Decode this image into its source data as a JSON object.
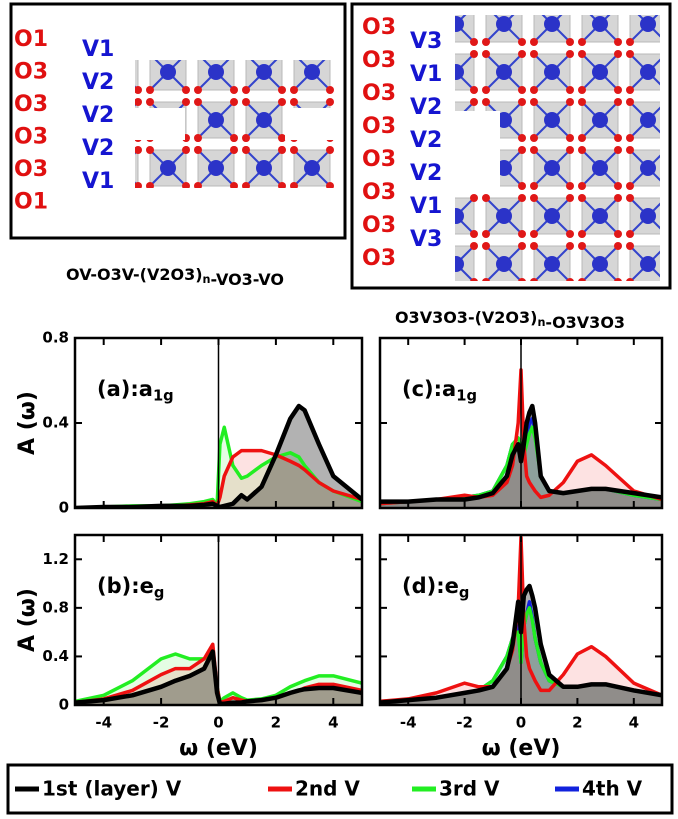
{
  "structures": [
    {
      "o_labels": [
        "O1",
        "O3",
        "O3",
        "O3",
        "O3",
        "O1"
      ],
      "v_labels": [
        "V1",
        "V2",
        "V2",
        "V2",
        "V1"
      ],
      "caption": {
        "before": "OV-O3V-(V2O3)",
        "sub": "n",
        "after": "-VO3-VO"
      }
    },
    {
      "o_labels": [
        "O3",
        "O3",
        "O3",
        "O3",
        "O3",
        "O3",
        "O3",
        "O3"
      ],
      "v_labels": [
        "V3",
        "V1",
        "V2",
        "V2",
        "V2",
        "V1",
        "V3"
      ],
      "caption": {
        "before": "O3V3O3-(V2O3)",
        "sub": "n",
        "after": "-O3V3O3"
      }
    }
  ],
  "chart_data": [
    {
      "type": "line",
      "label": {
        "text": "(a):a",
        "sub": "1g"
      },
      "ylabel": "A (ω)",
      "show_ytick_labels": true,
      "show_xtick_labels": false,
      "fill": true,
      "vline": 0,
      "xlim": [
        -5,
        5
      ],
      "xticks": [
        -4,
        -2,
        0,
        2,
        4
      ],
      "ylim": [
        0,
        0.8
      ],
      "yticks": [
        0,
        0.4,
        0.8
      ],
      "x": [
        -5,
        -4,
        -3,
        -2,
        -1.5,
        -1,
        -0.5,
        -0.2,
        -0.05,
        0.05,
        0.2,
        0.5,
        0.8,
        1,
        1.5,
        2,
        2.5,
        2.8,
        3,
        3.5,
        4,
        5
      ],
      "series": [
        {
          "name": "1st (layer) V",
          "color": "#000000",
          "values": [
            0,
            0.005,
            0.005,
            0.01,
            0.01,
            0.01,
            0.015,
            0.02,
            0.01,
            0.005,
            0.01,
            0.02,
            0.06,
            0.04,
            0.1,
            0.25,
            0.42,
            0.48,
            0.46,
            0.3,
            0.15,
            0.04
          ]
        },
        {
          "name": "2nd V",
          "color": "#ee1111",
          "values": [
            0,
            0.005,
            0.005,
            0.01,
            0.01,
            0.015,
            0.02,
            0.03,
            0.01,
            0.05,
            0.15,
            0.24,
            0.27,
            0.27,
            0.27,
            0.25,
            0.22,
            0.2,
            0.18,
            0.12,
            0.08,
            0.04
          ]
        },
        {
          "name": "3rd V",
          "color": "#22ee22",
          "values": [
            0,
            0.005,
            0.01,
            0.01,
            0.015,
            0.02,
            0.03,
            0.04,
            0.01,
            0.3,
            0.38,
            0.2,
            0.14,
            0.15,
            0.2,
            0.24,
            0.26,
            0.24,
            0.2,
            0.12,
            0.08,
            0.03
          ]
        }
      ]
    },
    {
      "type": "line",
      "label": {
        "text": "(c):a",
        "sub": "1g"
      },
      "show_ytick_labels": false,
      "show_xtick_labels": false,
      "fill": true,
      "vline": 0,
      "xlim": [
        -5,
        5
      ],
      "xticks": [
        -4,
        -2,
        0,
        2,
        4
      ],
      "ylim": [
        0,
        0.8
      ],
      "yticks": [
        0,
        0.4,
        0.8
      ],
      "x": [
        -5,
        -4,
        -3,
        -2,
        -1.5,
        -1,
        -0.5,
        -0.3,
        -0.1,
        0,
        0.1,
        0.2,
        0.3,
        0.4,
        0.5,
        0.7,
        1,
        1.5,
        2,
        2.5,
        3,
        4,
        5
      ],
      "series": [
        {
          "name": "1st (layer) V",
          "color": "#000000",
          "values": [
            0.03,
            0.03,
            0.04,
            0.04,
            0.05,
            0.07,
            0.15,
            0.25,
            0.3,
            0.22,
            0.3,
            0.4,
            0.45,
            0.48,
            0.4,
            0.15,
            0.08,
            0.07,
            0.08,
            0.09,
            0.09,
            0.07,
            0.05
          ]
        },
        {
          "name": "2nd V",
          "color": "#ee1111",
          "values": [
            0.02,
            0.03,
            0.04,
            0.06,
            0.05,
            0.06,
            0.12,
            0.2,
            0.4,
            0.65,
            0.3,
            0.15,
            0.12,
            0.1,
            0.08,
            0.05,
            0.06,
            0.12,
            0.22,
            0.25,
            0.2,
            0.08,
            0.04
          ]
        },
        {
          "name": "3rd V",
          "color": "#22ee22",
          "values": [
            0.02,
            0.03,
            0.04,
            0.05,
            0.06,
            0.08,
            0.2,
            0.3,
            0.33,
            0.3,
            0.25,
            0.3,
            0.35,
            0.38,
            0.33,
            0.15,
            0.08,
            0.07,
            0.08,
            0.09,
            0.09,
            0.06,
            0.04
          ]
        },
        {
          "name": "4th V",
          "color": "#1122dd",
          "values": [
            0.02,
            0.03,
            0.04,
            0.05,
            0.06,
            0.08,
            0.2,
            0.3,
            0.3,
            0.28,
            0.25,
            0.32,
            0.4,
            0.42,
            0.35,
            0.15,
            0.08,
            0.07,
            0.08,
            0.09,
            0.09,
            0.06,
            0.04
          ]
        }
      ]
    },
    {
      "type": "line",
      "label": {
        "text": "(b):e",
        "sub": "g"
      },
      "ylabel": "A (ω)",
      "xlabel": "ω (eV)",
      "show_ytick_labels": true,
      "show_xtick_labels": true,
      "fill": true,
      "vline": 0,
      "xlim": [
        -5,
        5
      ],
      "xticks": [
        -4,
        -2,
        0,
        2,
        4
      ],
      "ylim": [
        0,
        1.4
      ],
      "yticks": [
        0,
        0.4,
        0.8,
        1.2
      ],
      "x": [
        -5,
        -4,
        -3,
        -2,
        -1.5,
        -1,
        -0.5,
        -0.2,
        -0.05,
        0.05,
        0.2,
        0.5,
        0.8,
        1,
        1.5,
        2,
        2.5,
        2.8,
        3,
        3.5,
        4,
        5
      ],
      "series": [
        {
          "name": "1st (layer) V",
          "color": "#000000",
          "values": [
            0.02,
            0.04,
            0.08,
            0.15,
            0.2,
            0.24,
            0.3,
            0.44,
            0.1,
            0.01,
            0.01,
            0.02,
            0.02,
            0.03,
            0.04,
            0.06,
            0.1,
            0.12,
            0.13,
            0.14,
            0.14,
            0.1
          ]
        },
        {
          "name": "2nd V",
          "color": "#ee1111",
          "values": [
            0.02,
            0.05,
            0.12,
            0.25,
            0.3,
            0.3,
            0.38,
            0.5,
            0.15,
            0.02,
            0.03,
            0.06,
            0.04,
            0.03,
            0.04,
            0.06,
            0.1,
            0.12,
            0.14,
            0.17,
            0.17,
            0.12
          ]
        },
        {
          "name": "3rd V",
          "color": "#22ee22",
          "values": [
            0.03,
            0.08,
            0.2,
            0.38,
            0.42,
            0.38,
            0.38,
            0.45,
            0.15,
            0.03,
            0.06,
            0.1,
            0.06,
            0.04,
            0.05,
            0.08,
            0.15,
            0.18,
            0.2,
            0.24,
            0.24,
            0.18
          ]
        }
      ]
    },
    {
      "type": "line",
      "label": {
        "text": "(d):e",
        "sub": "g"
      },
      "xlabel": "ω (eV)",
      "show_ytick_labels": false,
      "show_xtick_labels": true,
      "fill": true,
      "vline": 0,
      "xlim": [
        -5,
        5
      ],
      "xticks": [
        -4,
        -2,
        0,
        2,
        4
      ],
      "ylim": [
        0,
        1.4
      ],
      "yticks": [
        0,
        0.4,
        0.8,
        1.2
      ],
      "x": [
        -5,
        -4,
        -3,
        -2,
        -1.5,
        -1,
        -0.5,
        -0.3,
        -0.1,
        0,
        0.1,
        0.2,
        0.3,
        0.4,
        0.5,
        0.7,
        1,
        1.5,
        2,
        2.5,
        3,
        4,
        5
      ],
      "series": [
        {
          "name": "1st (layer) V",
          "color": "#000000",
          "values": [
            0.02,
            0.04,
            0.06,
            0.1,
            0.12,
            0.15,
            0.3,
            0.5,
            0.85,
            0.6,
            0.9,
            0.95,
            0.98,
            0.9,
            0.8,
            0.5,
            0.25,
            0.15,
            0.15,
            0.17,
            0.17,
            0.12,
            0.08
          ]
        },
        {
          "name": "2nd V",
          "color": "#ee1111",
          "values": [
            0.03,
            0.05,
            0.1,
            0.18,
            0.15,
            0.15,
            0.3,
            0.45,
            0.8,
            1.38,
            0.7,
            0.4,
            0.3,
            0.25,
            0.2,
            0.12,
            0.12,
            0.25,
            0.42,
            0.48,
            0.4,
            0.18,
            0.08
          ]
        },
        {
          "name": "3rd V",
          "color": "#22ee22",
          "values": [
            0.03,
            0.04,
            0.06,
            0.1,
            0.12,
            0.2,
            0.4,
            0.55,
            0.6,
            0.35,
            0.65,
            0.75,
            0.8,
            0.7,
            0.55,
            0.35,
            0.2,
            0.15,
            0.15,
            0.17,
            0.17,
            0.12,
            0.08
          ]
        },
        {
          "name": "4th V",
          "color": "#1122dd",
          "values": [
            0.03,
            0.04,
            0.06,
            0.1,
            0.12,
            0.2,
            0.4,
            0.55,
            0.65,
            0.35,
            0.65,
            0.75,
            0.85,
            0.72,
            0.55,
            0.35,
            0.2,
            0.15,
            0.15,
            0.17,
            0.17,
            0.12,
            0.08
          ]
        }
      ]
    }
  ]
}
